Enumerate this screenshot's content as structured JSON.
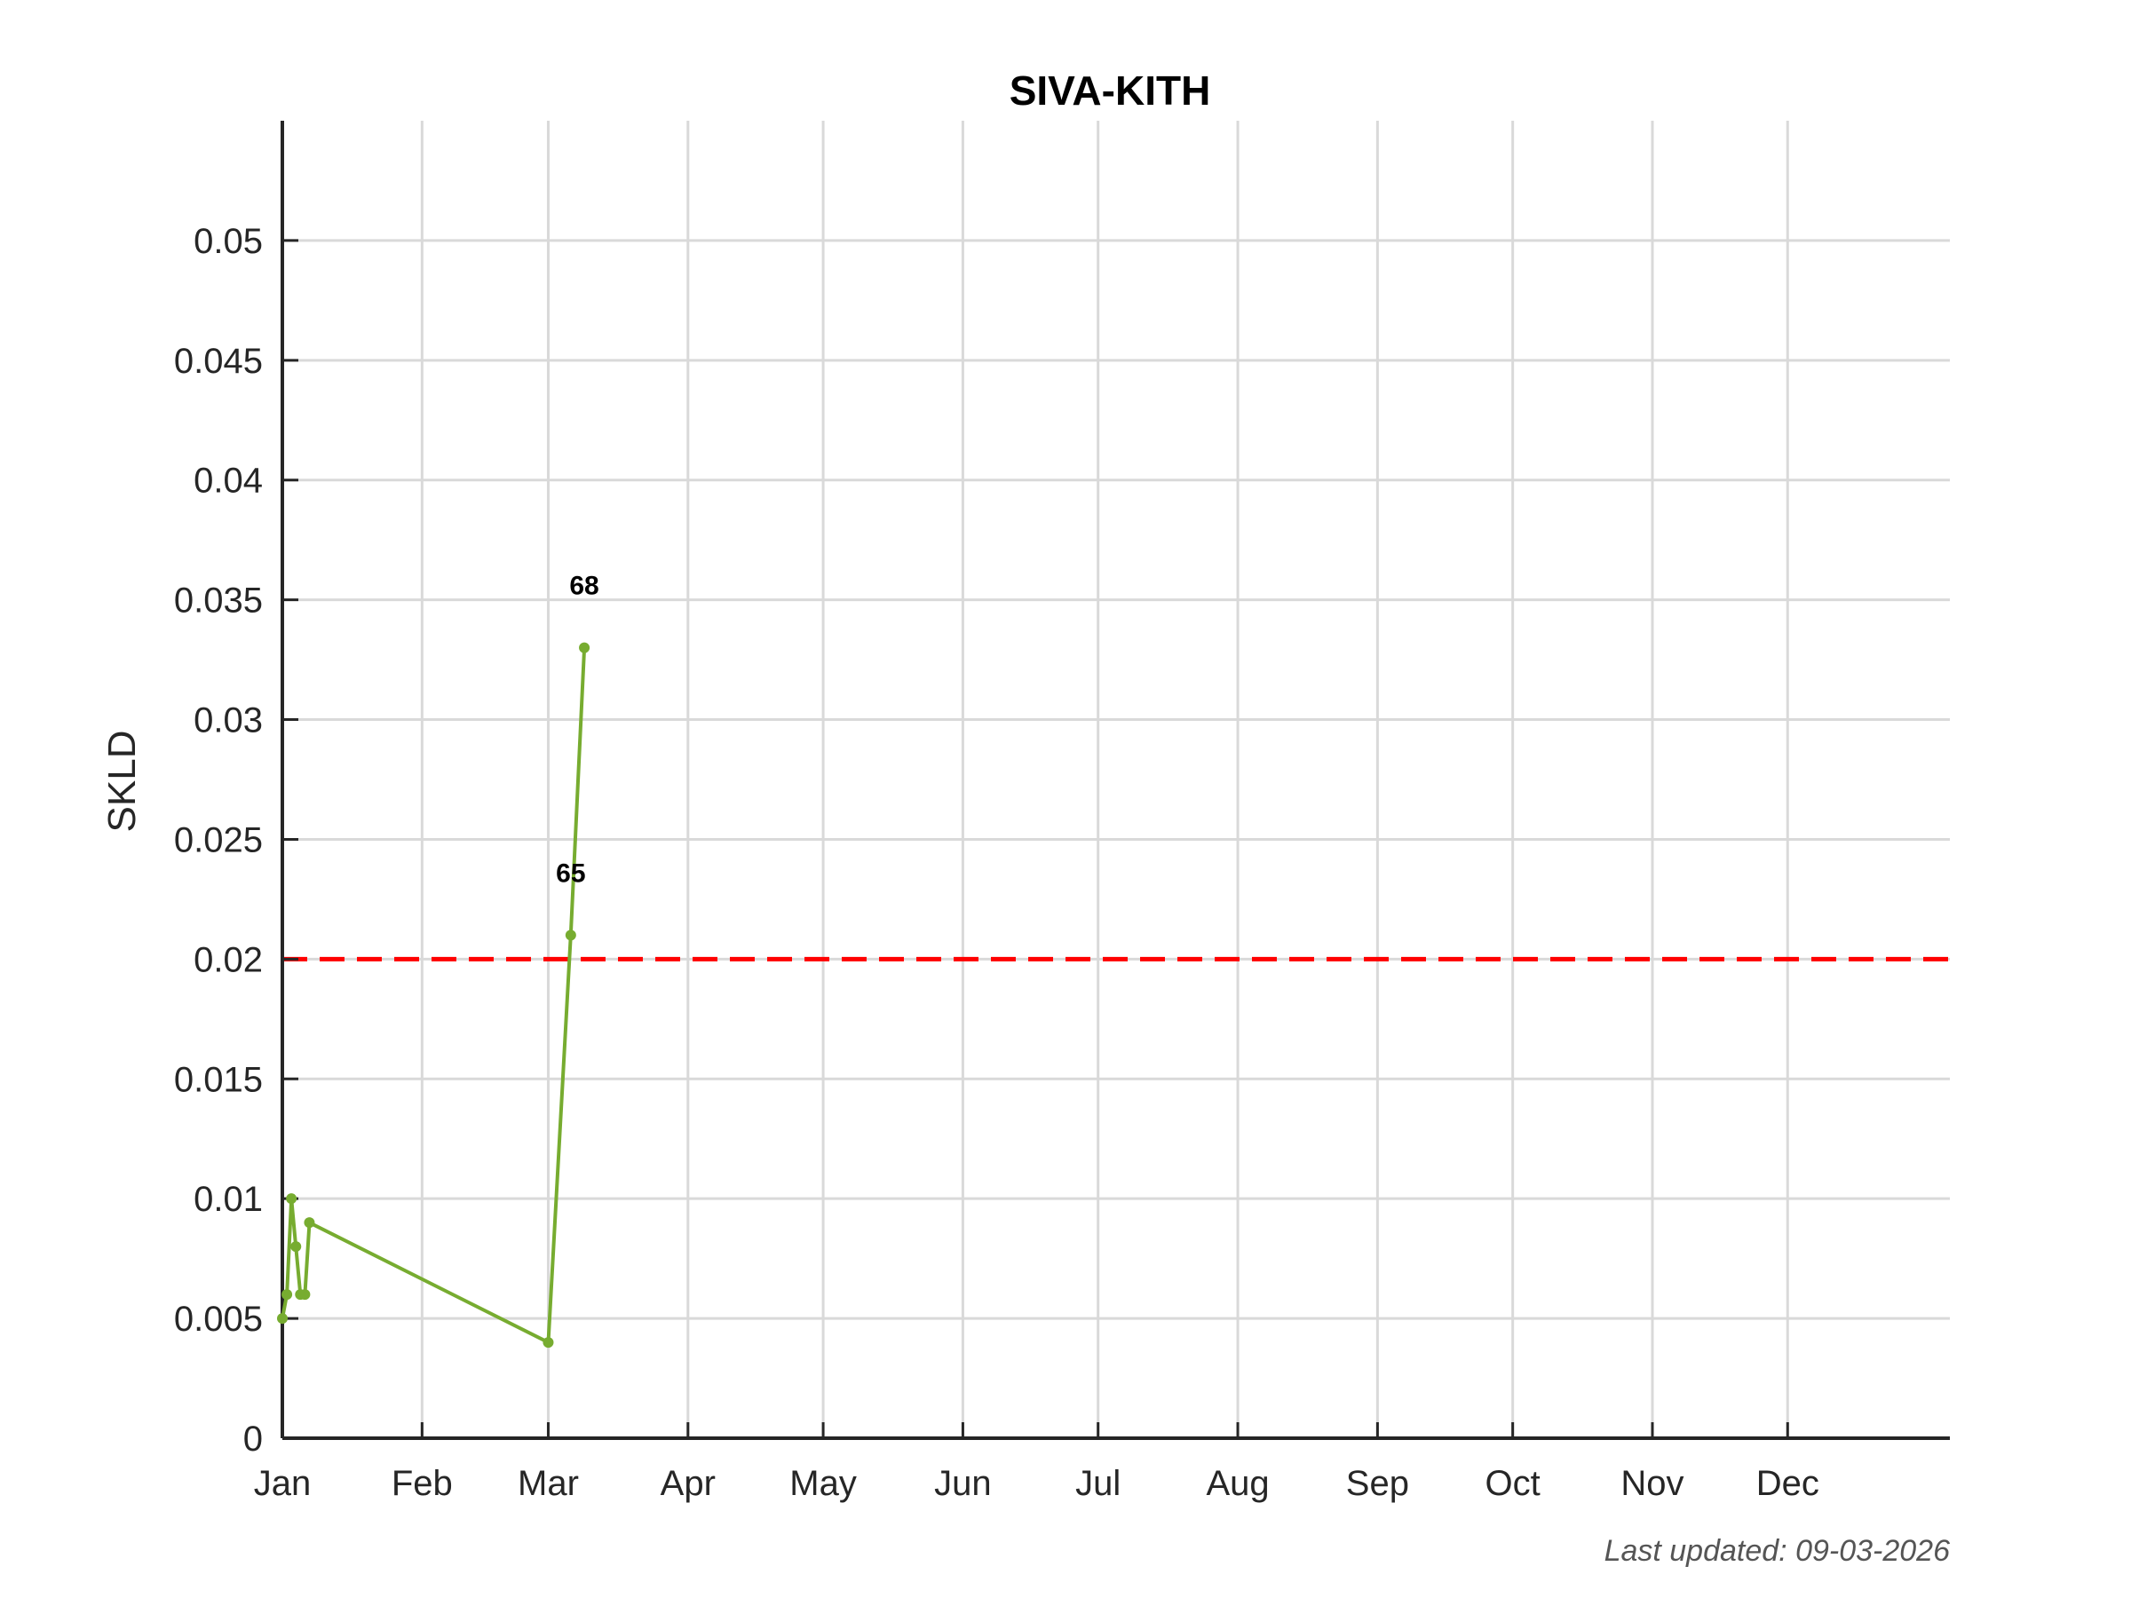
{
  "chart_data": {
    "type": "line",
    "title": "SIVA-KITH",
    "xlabel": "",
    "ylabel": "SKLD",
    "x_tick_labels": [
      "Jan",
      "Feb",
      "Mar",
      "Apr",
      "May",
      "Jun",
      "Jul",
      "Aug",
      "Sep",
      "Oct",
      "Nov",
      "Dec"
    ],
    "y_tick_labels": [
      "0",
      "0.005",
      "0.01",
      "0.015",
      "0.02",
      "0.025",
      "0.03",
      "0.035",
      "0.04",
      "0.045",
      "0.05"
    ],
    "ylim": [
      0,
      0.055
    ],
    "xlim": [
      "2026-01-01",
      "2027-01-06"
    ],
    "grid": true,
    "series": [
      {
        "color": "#77ac30",
        "x": [
          "2026-01-01",
          "2026-01-02",
          "2026-01-03",
          "2026-01-04",
          "2026-01-05",
          "2026-01-06",
          "2026-01-07",
          "2026-03-01",
          "2026-03-06",
          "2026-03-09"
        ],
        "y": [
          0.005,
          0.006,
          0.01,
          0.008,
          0.006,
          0.006,
          0.009,
          0.004,
          0.021,
          0.033
        ]
      }
    ],
    "reference_lines": [
      {
        "y": 0.02,
        "color": "#ff0000",
        "style": "dashed"
      }
    ],
    "annotations": [
      {
        "x": "2026-03-06",
        "y": 0.021,
        "text": "65"
      },
      {
        "x": "2026-03-09",
        "y": 0.033,
        "text": "68"
      }
    ]
  },
  "footer": {
    "last_updated": "Last updated: 09-03-2026"
  }
}
